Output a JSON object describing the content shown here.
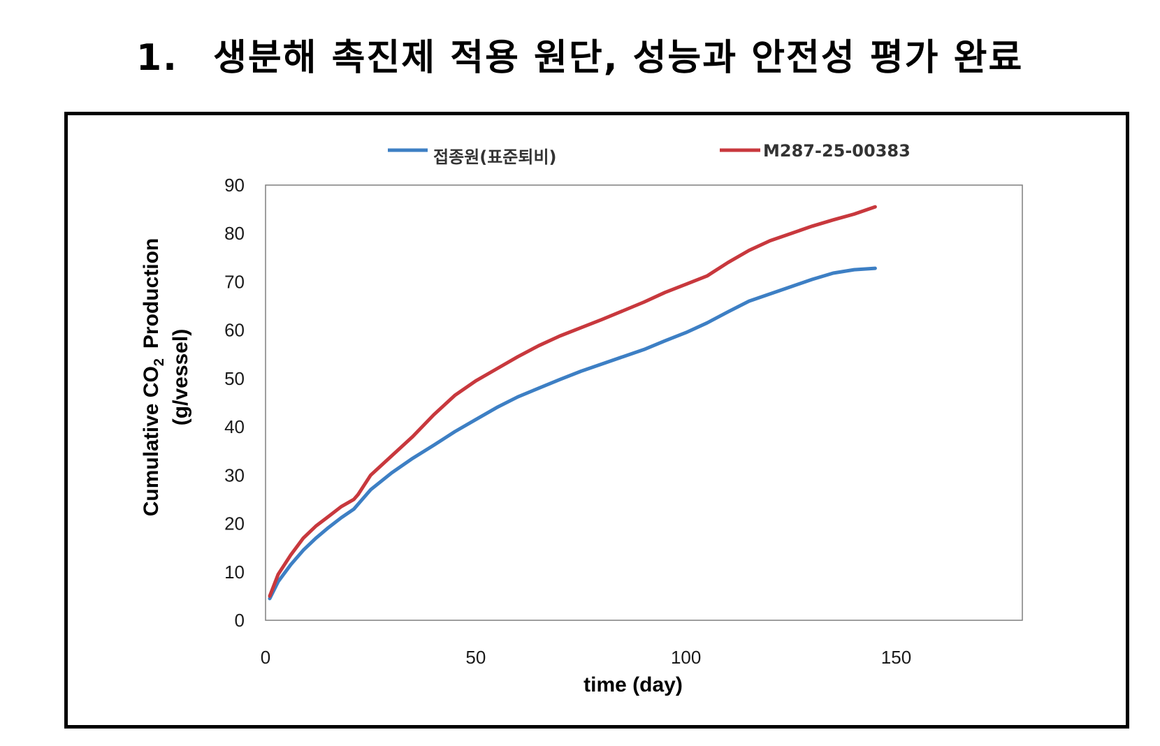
{
  "heading": {
    "number": "1.",
    "text": "생분해 촉진제 적용 원단, 성능과 안전성 평가 완료"
  },
  "chart_data": {
    "type": "line",
    "xlabel": "time (day)",
    "ylabel_line1": "Cumulative CO",
    "ylabel_sub": "2",
    "ylabel_line1_end": "Production",
    "ylabel_line2": "(g/vessel)",
    "xlim": [
      0,
      180
    ],
    "ylim": [
      0,
      90
    ],
    "xticks": [
      0,
      50,
      100,
      150
    ],
    "yticks": [
      0,
      10,
      20,
      30,
      40,
      50,
      60,
      70,
      80,
      90
    ],
    "grid": false,
    "legend_position": "top",
    "series": [
      {
        "name": "접종원(표준퇴비)",
        "color": "#3d7fc4",
        "x": [
          1,
          3,
          6,
          9,
          12,
          15,
          18,
          21,
          22,
          25,
          30,
          35,
          40,
          45,
          50,
          55,
          60,
          65,
          70,
          75,
          80,
          85,
          90,
          95,
          100,
          105,
          110,
          115,
          120,
          125,
          130,
          135,
          140,
          145
        ],
        "y": [
          4.5,
          8,
          11.5,
          14.5,
          17,
          19.2,
          21.2,
          23,
          24,
          27,
          30.5,
          33.5,
          36.2,
          39,
          41.5,
          44,
          46.2,
          48,
          49.8,
          51.5,
          53,
          54.5,
          56,
          57.8,
          59.5,
          61.5,
          63.8,
          66,
          67.5,
          69,
          70.5,
          71.8,
          72.5,
          72.8
        ]
      },
      {
        "name": "M287-25-00383",
        "color": "#c8383d",
        "x": [
          1,
          3,
          6,
          9,
          12,
          15,
          18,
          21,
          22,
          25,
          30,
          35,
          40,
          45,
          50,
          55,
          60,
          65,
          70,
          75,
          80,
          85,
          90,
          95,
          100,
          105,
          110,
          115,
          120,
          125,
          130,
          135,
          140,
          145
        ],
        "y": [
          5,
          9.5,
          13.5,
          17,
          19.5,
          21.5,
          23.5,
          25,
          26,
          30,
          34,
          38,
          42.5,
          46.5,
          49.5,
          52,
          54.5,
          56.8,
          58.8,
          60.5,
          62.2,
          64,
          65.8,
          67.8,
          69.5,
          71.2,
          74,
          76.5,
          78.5,
          80,
          81.5,
          82.8,
          84,
          85.5
        ]
      }
    ]
  }
}
